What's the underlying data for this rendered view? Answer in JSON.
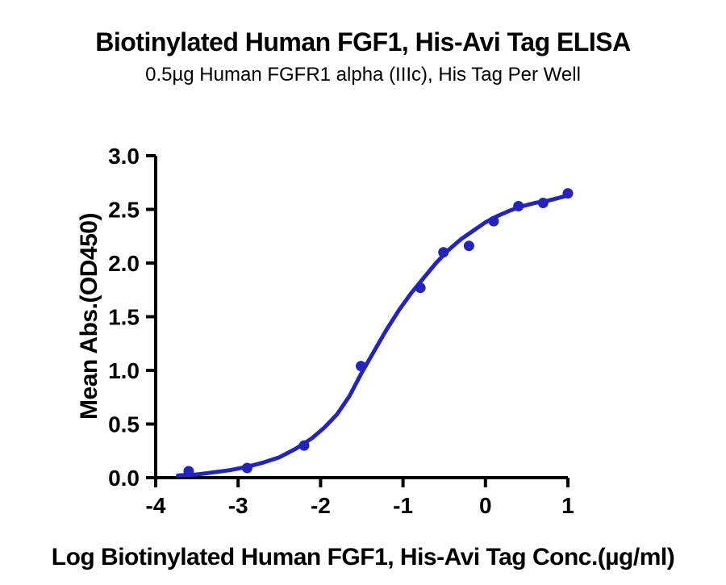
{
  "chart_data": {
    "type": "scatter",
    "title": "Biotinylated Human FGF1, His-Avi Tag ELISA",
    "subtitle": "0.5µg Human FGFR1 alpha (IIIc), His Tag Per Well",
    "xlabel": "Log Biotinylated Human FGF1, His-Avi Tag Conc.(µg/ml)",
    "ylabel": "Mean Abs.(OD450)",
    "xlim": [
      -4,
      1
    ],
    "ylim": [
      0,
      3
    ],
    "x_ticks": [
      -4,
      -3,
      -2,
      -1,
      0,
      1
    ],
    "y_ticks": [
      0,
      0.5,
      1,
      1.5,
      2,
      2.5,
      3
    ],
    "grid": false,
    "legend": false,
    "colors": {
      "marker": "#2323BD",
      "line": "#2323BD",
      "axis": "#000000",
      "background": "#FFFFFF"
    },
    "series": [
      {
        "name": "Mean Abs.(OD450)",
        "points": [
          {
            "x": -3.6,
            "y": 0.06
          },
          {
            "x": -2.89,
            "y": 0.09
          },
          {
            "x": -2.2,
            "y": 0.3
          },
          {
            "x": -1.51,
            "y": 1.04
          },
          {
            "x": -0.79,
            "y": 1.77
          },
          {
            "x": -0.51,
            "y": 2.1
          },
          {
            "x": -0.2,
            "y": 2.16
          },
          {
            "x": 0.1,
            "y": 2.39
          },
          {
            "x": 0.4,
            "y": 2.53
          },
          {
            "x": 0.7,
            "y": 2.56
          },
          {
            "x": 1.0,
            "y": 2.65
          }
        ]
      }
    ],
    "fit_curve": {
      "model": "sigmoidal dose-response (4PL)",
      "samples": [
        [
          -3.73,
          0.02
        ],
        [
          -3.5,
          0.03
        ],
        [
          -3.3,
          0.05
        ],
        [
          -3.1,
          0.07
        ],
        [
          -2.9,
          0.1
        ],
        [
          -2.7,
          0.14
        ],
        [
          -2.5,
          0.19
        ],
        [
          -2.3,
          0.27
        ],
        [
          -2.1,
          0.37
        ],
        [
          -1.95,
          0.47
        ],
        [
          -1.8,
          0.59
        ],
        [
          -1.65,
          0.76
        ],
        [
          -1.5,
          0.98
        ],
        [
          -1.35,
          1.18
        ],
        [
          -1.2,
          1.38
        ],
        [
          -1.05,
          1.56
        ],
        [
          -0.9,
          1.72
        ],
        [
          -0.75,
          1.86
        ],
        [
          -0.6,
          2.0
        ],
        [
          -0.45,
          2.12
        ],
        [
          -0.3,
          2.22
        ],
        [
          -0.15,
          2.3
        ],
        [
          0.0,
          2.38
        ],
        [
          0.15,
          2.44
        ],
        [
          0.3,
          2.49
        ],
        [
          0.45,
          2.53
        ],
        [
          0.6,
          2.56
        ],
        [
          0.75,
          2.58
        ],
        [
          0.9,
          2.61
        ],
        [
          1.0,
          2.63
        ]
      ]
    }
  }
}
